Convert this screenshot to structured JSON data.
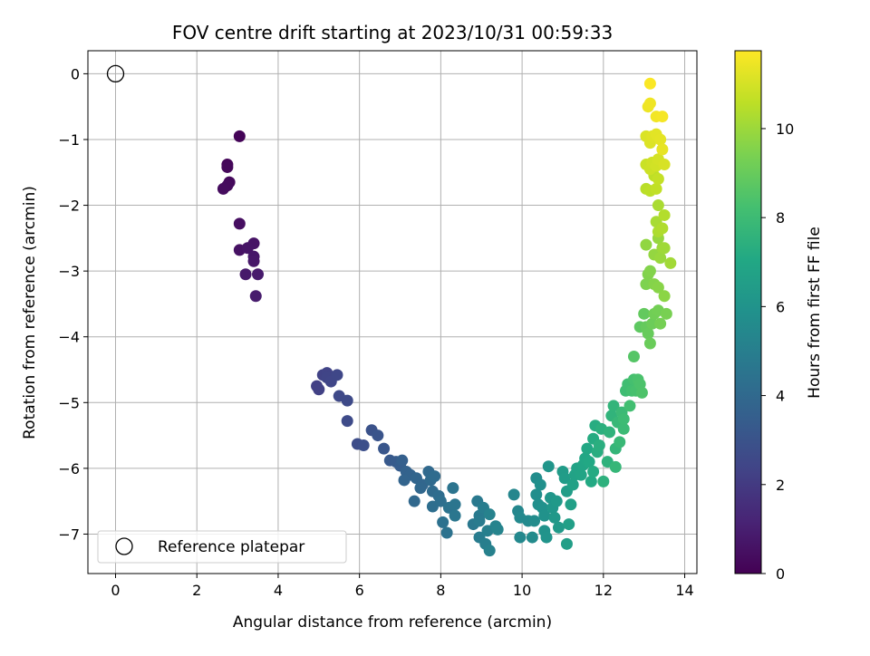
{
  "chart_data": {
    "type": "scatter",
    "title": "FOV centre drift starting at 2023/10/31 00:59:33",
    "xlabel": "Angular distance from reference (arcmin)",
    "ylabel": "Rotation from reference (arcmin)",
    "xlim": [
      -0.68,
      14.3
    ],
    "ylim": [
      -7.6,
      0.35
    ],
    "x_ticks": [
      0,
      2,
      4,
      6,
      8,
      10,
      12,
      14
    ],
    "y_ticks": [
      0,
      -1,
      -2,
      -3,
      -4,
      -5,
      -6,
      -7
    ],
    "x_tick_labels": [
      "0",
      "2",
      "4",
      "6",
      "8",
      "10",
      "12",
      "14"
    ],
    "y_tick_labels": [
      "0",
      "−1",
      "−2",
      "−3",
      "−4",
      "−5",
      "−6",
      "−7"
    ],
    "grid": true,
    "legend": {
      "placement": "lower-left",
      "entries": [
        {
          "label": "Reference platepar",
          "marker": "open-circle"
        }
      ]
    },
    "colorbar": {
      "label": "Hours from first FF file",
      "colormap": "viridis",
      "range": [
        0,
        11.75
      ],
      "ticks": [
        0,
        2,
        4,
        6,
        8,
        10
      ],
      "tick_labels": [
        "0",
        "2",
        "4",
        "6",
        "8",
        "10"
      ]
    },
    "reference_point": {
      "x": 0,
      "y": 0
    },
    "points": [
      [
        3.05,
        -0.95,
        0.1
      ],
      [
        2.75,
        -1.38,
        0.18
      ],
      [
        2.75,
        -1.42,
        0.22
      ],
      [
        2.8,
        -1.65,
        0.28
      ],
      [
        2.75,
        -1.7,
        0.32
      ],
      [
        2.65,
        -1.75,
        0.36
      ],
      [
        3.05,
        -2.28,
        0.45
      ],
      [
        3.05,
        -2.68,
        0.55
      ],
      [
        3.4,
        -2.58,
        0.6
      ],
      [
        3.25,
        -2.65,
        0.65
      ],
      [
        3.4,
        -2.78,
        0.7
      ],
      [
        3.4,
        -2.85,
        0.75
      ],
      [
        3.2,
        -3.05,
        0.8
      ],
      [
        3.5,
        -3.05,
        0.85
      ],
      [
        3.45,
        -3.38,
        0.9
      ],
      [
        4.95,
        -4.75,
        2.2
      ],
      [
        5.0,
        -4.8,
        2.25
      ],
      [
        5.1,
        -4.58,
        2.3
      ],
      [
        5.2,
        -4.55,
        2.35
      ],
      [
        5.2,
        -4.62,
        2.4
      ],
      [
        5.3,
        -4.68,
        2.45
      ],
      [
        5.45,
        -4.58,
        2.5
      ],
      [
        5.5,
        -4.9,
        2.55
      ],
      [
        5.7,
        -4.97,
        2.6
      ],
      [
        5.7,
        -5.28,
        2.65
      ],
      [
        5.95,
        -5.63,
        2.75
      ],
      [
        6.1,
        -5.65,
        2.85
      ],
      [
        6.3,
        -5.42,
        2.95
      ],
      [
        6.45,
        -5.5,
        3.05
      ],
      [
        6.6,
        -5.7,
        3.15
      ],
      [
        6.75,
        -5.88,
        3.25
      ],
      [
        6.9,
        -5.9,
        3.35
      ],
      [
        7.0,
        -5.96,
        3.45
      ],
      [
        7.05,
        -5.88,
        3.55
      ],
      [
        7.15,
        -6.05,
        3.65
      ],
      [
        7.25,
        -6.1,
        3.7
      ],
      [
        7.1,
        -6.18,
        3.75
      ],
      [
        7.4,
        -6.15,
        3.8
      ],
      [
        7.55,
        -6.25,
        3.85
      ],
      [
        7.5,
        -6.3,
        3.9
      ],
      [
        7.35,
        -6.5,
        3.95
      ],
      [
        7.7,
        -6.05,
        4.0
      ],
      [
        7.75,
        -6.18,
        4.05
      ],
      [
        7.8,
        -6.35,
        4.1
      ],
      [
        7.85,
        -6.12,
        4.15
      ],
      [
        7.95,
        -6.42,
        4.2
      ],
      [
        7.8,
        -6.58,
        4.25
      ],
      [
        8.0,
        -6.5,
        4.3
      ],
      [
        8.05,
        -6.82,
        4.35
      ],
      [
        8.15,
        -6.98,
        4.4
      ],
      [
        8.2,
        -6.6,
        4.45
      ],
      [
        8.3,
        -6.3,
        4.5
      ],
      [
        8.35,
        -6.55,
        4.55
      ],
      [
        8.35,
        -6.72,
        4.6
      ],
      [
        8.8,
        -6.85,
        4.7
      ],
      [
        8.9,
        -6.5,
        4.75
      ],
      [
        8.95,
        -6.72,
        4.8
      ],
      [
        8.95,
        -6.8,
        4.85
      ],
      [
        8.95,
        -7.05,
        4.9
      ],
      [
        9.05,
        -6.6,
        4.95
      ],
      [
        9.1,
        -7.15,
        5.0
      ],
      [
        9.15,
        -6.95,
        5.05
      ],
      [
        9.2,
        -7.25,
        5.1
      ],
      [
        9.2,
        -6.7,
        5.15
      ],
      [
        9.35,
        -6.88,
        5.2
      ],
      [
        9.4,
        -6.93,
        5.25
      ],
      [
        9.8,
        -6.4,
        5.35
      ],
      [
        9.9,
        -6.65,
        5.4
      ],
      [
        9.95,
        -7.05,
        5.45
      ],
      [
        9.95,
        -6.75,
        5.5
      ],
      [
        10.15,
        -6.8,
        5.55
      ],
      [
        10.25,
        -7.05,
        5.6
      ],
      [
        10.3,
        -6.8,
        5.65
      ],
      [
        10.35,
        -6.15,
        5.7
      ],
      [
        10.35,
        -6.4,
        5.75
      ],
      [
        10.4,
        -6.55,
        5.8
      ],
      [
        10.45,
        -6.25,
        5.85
      ],
      [
        10.5,
        -6.6,
        5.9
      ],
      [
        10.55,
        -6.72,
        5.95
      ],
      [
        10.55,
        -6.95,
        6.0
      ],
      [
        10.6,
        -7.05,
        6.05
      ],
      [
        10.65,
        -5.97,
        6.1
      ],
      [
        10.7,
        -6.45,
        6.15
      ],
      [
        10.75,
        -6.6,
        6.2
      ],
      [
        10.8,
        -6.75,
        6.25
      ],
      [
        10.85,
        -6.5,
        6.3
      ],
      [
        10.9,
        -6.9,
        6.35
      ],
      [
        11.0,
        -6.05,
        6.4
      ],
      [
        11.05,
        -6.15,
        6.45
      ],
      [
        11.1,
        -6.35,
        6.5
      ],
      [
        11.1,
        -7.15,
        6.55
      ],
      [
        11.15,
        -6.85,
        6.6
      ],
      [
        11.2,
        -6.55,
        6.65
      ],
      [
        11.25,
        -6.25,
        6.7
      ],
      [
        11.3,
        -6.1,
        6.75
      ],
      [
        11.35,
        -6.0,
        6.8
      ],
      [
        11.45,
        -6.1,
        6.85
      ],
      [
        11.5,
        -5.95,
        6.9
      ],
      [
        11.55,
        -5.85,
        6.95
      ],
      [
        11.6,
        -5.7,
        7.0
      ],
      [
        11.65,
        -5.9,
        7.05
      ],
      [
        11.7,
        -6.2,
        7.1
      ],
      [
        11.75,
        -6.05,
        7.15
      ],
      [
        11.75,
        -5.55,
        7.2
      ],
      [
        11.8,
        -5.35,
        7.25
      ],
      [
        11.85,
        -5.75,
        7.3
      ],
      [
        11.9,
        -5.65,
        7.35
      ],
      [
        11.95,
        -5.4,
        7.4
      ],
      [
        12.0,
        -6.2,
        7.45
      ],
      [
        12.1,
        -5.9,
        7.5
      ],
      [
        12.15,
        -5.45,
        7.55
      ],
      [
        12.2,
        -5.2,
        7.6
      ],
      [
        12.25,
        -5.05,
        7.65
      ],
      [
        12.3,
        -5.7,
        7.7
      ],
      [
        12.3,
        -5.98,
        7.75
      ],
      [
        12.35,
        -5.3,
        7.8
      ],
      [
        12.4,
        -5.6,
        7.85
      ],
      [
        12.45,
        -5.15,
        7.9
      ],
      [
        12.5,
        -5.4,
        7.95
      ],
      [
        12.5,
        -5.25,
        8.0
      ],
      [
        12.55,
        -4.82,
        8.05
      ],
      [
        12.6,
        -4.72,
        8.1
      ],
      [
        12.65,
        -5.05,
        8.15
      ],
      [
        12.7,
        -4.82,
        8.2
      ],
      [
        12.75,
        -4.65,
        8.25
      ],
      [
        12.8,
        -4.82,
        8.3
      ],
      [
        12.85,
        -4.65,
        8.35
      ],
      [
        12.9,
        -4.72,
        8.4
      ],
      [
        12.95,
        -4.85,
        8.45
      ],
      [
        12.75,
        -4.3,
        8.6
      ],
      [
        12.9,
        -3.85,
        8.8
      ],
      [
        13.0,
        -3.65,
        8.9
      ],
      [
        13.05,
        -3.85,
        8.95
      ],
      [
        13.1,
        -3.95,
        9.0
      ],
      [
        13.15,
        -4.1,
        9.05
      ],
      [
        13.2,
        -3.8,
        9.1
      ],
      [
        13.25,
        -3.65,
        9.2
      ],
      [
        13.35,
        -3.6,
        9.25
      ],
      [
        13.4,
        -3.8,
        9.3
      ],
      [
        13.55,
        -3.65,
        9.35
      ],
      [
        13.05,
        -3.2,
        9.45
      ],
      [
        13.1,
        -3.05,
        9.5
      ],
      [
        13.15,
        -3.0,
        9.55
      ],
      [
        13.25,
        -3.2,
        9.6
      ],
      [
        13.35,
        -3.25,
        9.65
      ],
      [
        13.5,
        -3.38,
        9.7
      ],
      [
        13.05,
        -2.6,
        9.8
      ],
      [
        13.25,
        -2.75,
        9.85
      ],
      [
        13.35,
        -2.5,
        9.9
      ],
      [
        13.4,
        -2.8,
        9.95
      ],
      [
        13.45,
        -2.65,
        10.0
      ],
      [
        13.5,
        -2.65,
        10.05
      ],
      [
        13.65,
        -2.88,
        10.1
      ],
      [
        13.3,
        -2.25,
        10.2
      ],
      [
        13.35,
        -2.0,
        10.25
      ],
      [
        13.35,
        -2.4,
        10.3
      ],
      [
        13.45,
        -2.35,
        10.35
      ],
      [
        13.5,
        -2.15,
        10.4
      ],
      [
        13.05,
        -1.75,
        10.5
      ],
      [
        13.15,
        -1.78,
        10.55
      ],
      [
        13.25,
        -1.55,
        10.6
      ],
      [
        13.3,
        -1.75,
        10.65
      ],
      [
        13.35,
        -1.6,
        10.7
      ],
      [
        13.05,
        -1.38,
        10.8
      ],
      [
        13.15,
        -1.45,
        10.85
      ],
      [
        13.2,
        -1.35,
        10.9
      ],
      [
        13.3,
        -1.4,
        10.95
      ],
      [
        13.35,
        -1.3,
        11.0
      ],
      [
        13.5,
        -1.38,
        11.05
      ],
      [
        13.05,
        -0.95,
        11.1
      ],
      [
        13.15,
        -1.05,
        11.15
      ],
      [
        13.2,
        -0.95,
        11.2
      ],
      [
        13.3,
        -0.92,
        11.25
      ],
      [
        13.4,
        -1.0,
        11.3
      ],
      [
        13.45,
        -1.15,
        11.35
      ],
      [
        13.1,
        -0.5,
        11.45
      ],
      [
        13.15,
        -0.45,
        11.5
      ],
      [
        13.3,
        -0.65,
        11.55
      ],
      [
        13.45,
        -0.65,
        11.6
      ],
      [
        13.15,
        -0.15,
        11.7
      ]
    ]
  }
}
